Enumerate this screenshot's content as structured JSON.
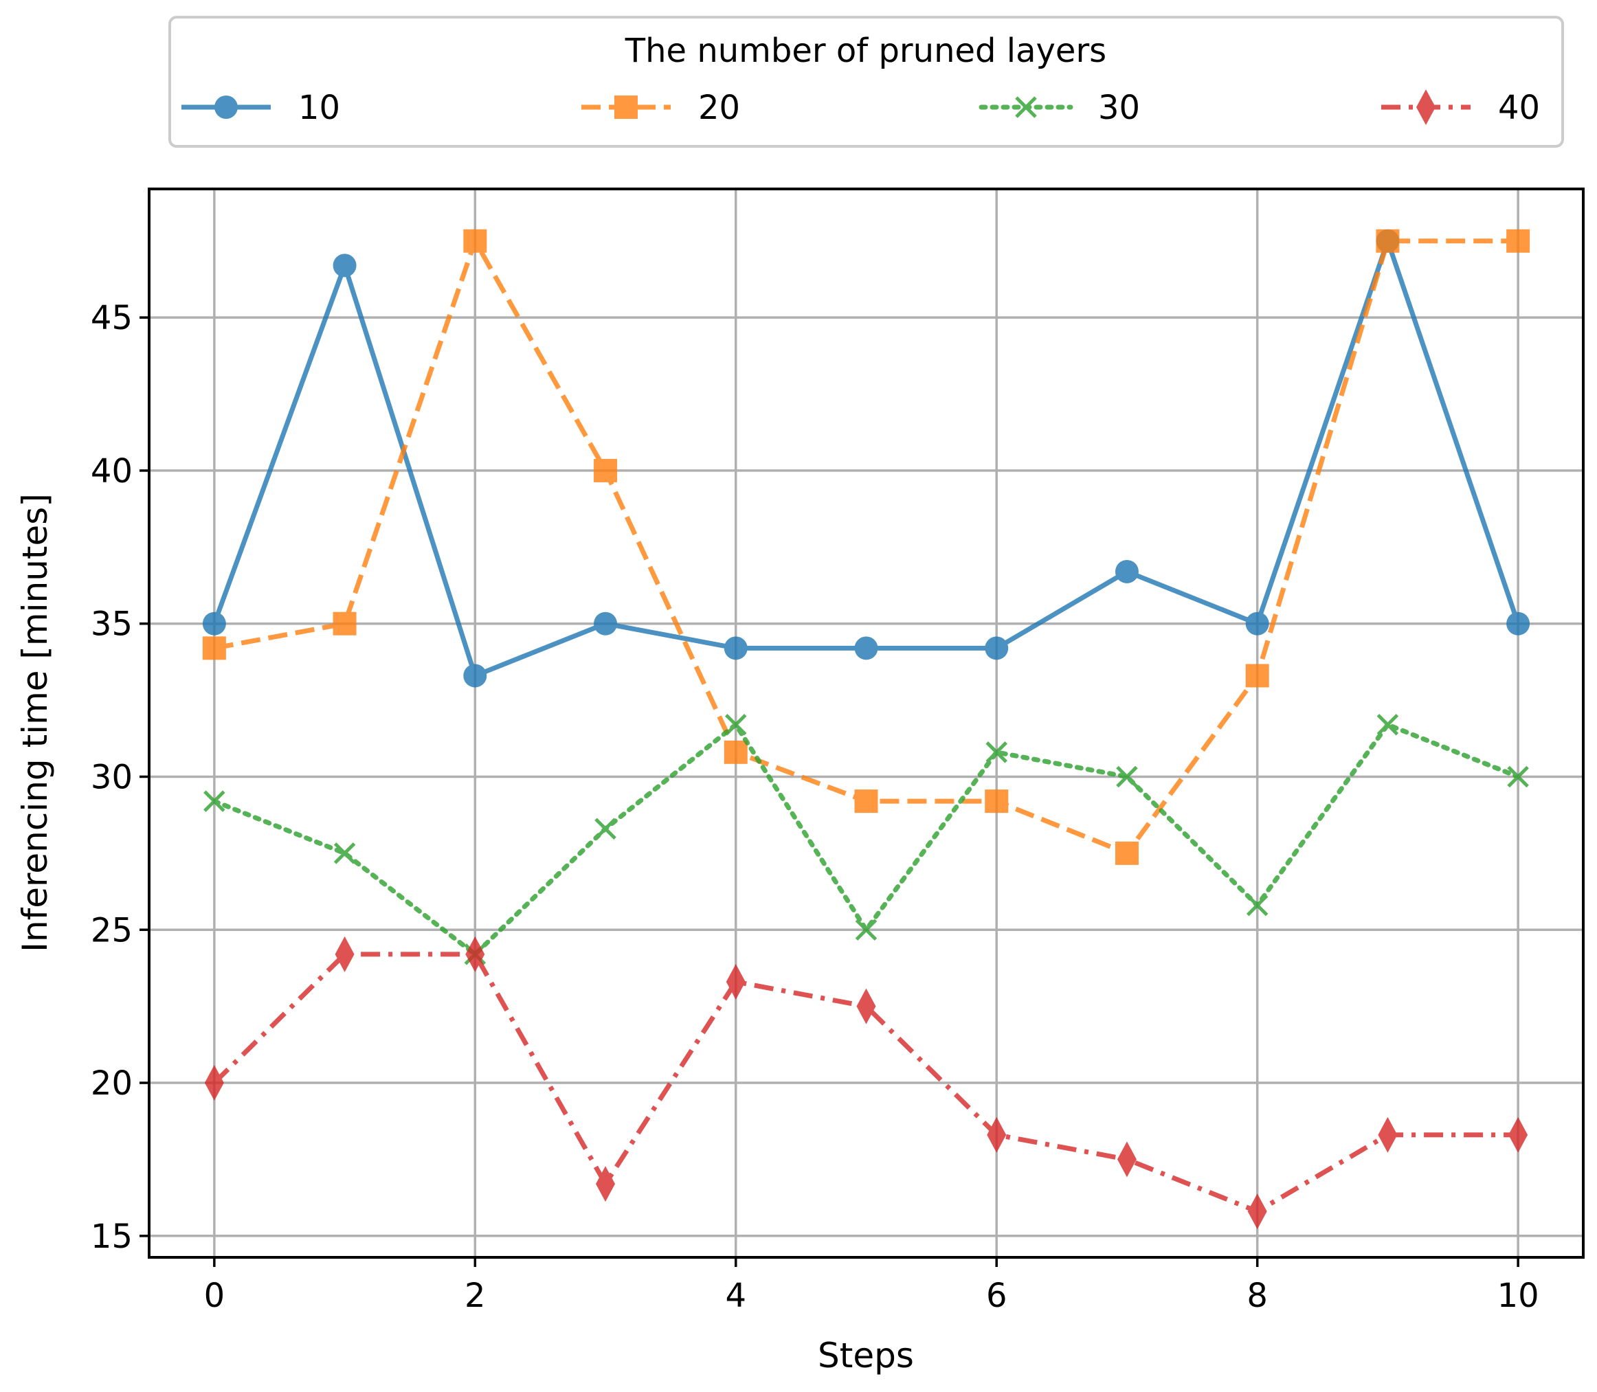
{
  "chart_data": {
    "type": "line",
    "xlabel": "Steps",
    "ylabel": "Inferencing time [minutes]",
    "xlim": [
      -0.5,
      10.5
    ],
    "ylim": [
      14.3,
      49.2
    ],
    "xticks": [
      0,
      2,
      4,
      6,
      8,
      10
    ],
    "yticks": [
      15,
      20,
      25,
      30,
      35,
      40,
      45
    ],
    "grid": true,
    "legend": {
      "title": "The number of pruned layers",
      "placement": "top, outside plot, single row"
    },
    "x": [
      0,
      1,
      2,
      3,
      4,
      5,
      6,
      7,
      8,
      9,
      10
    ],
    "series": [
      {
        "name": "10",
        "color": "#1f77b4",
        "linestyle": "solid",
        "marker": "circle",
        "values": [
          35.0,
          46.7,
          33.3,
          35.0,
          34.2,
          34.2,
          34.2,
          36.7,
          35.0,
          47.5,
          35.0
        ]
      },
      {
        "name": "20",
        "color": "#ff7f0e",
        "linestyle": "dashed",
        "marker": "square",
        "values": [
          34.2,
          35.0,
          47.5,
          40.0,
          30.8,
          29.2,
          29.2,
          27.5,
          33.3,
          47.5,
          47.5
        ]
      },
      {
        "name": "30",
        "color": "#2ca02c",
        "linestyle": "dotted",
        "marker": "x",
        "values": [
          29.2,
          27.5,
          24.2,
          28.3,
          31.7,
          25.0,
          30.8,
          30.0,
          25.8,
          31.7,
          30.0
        ]
      },
      {
        "name": "40",
        "color": "#d62728",
        "linestyle": "dashdot",
        "marker": "thin_diamond",
        "values": [
          20.0,
          24.2,
          24.2,
          16.7,
          23.3,
          22.5,
          18.3,
          17.5,
          15.8,
          18.3,
          18.3
        ]
      }
    ]
  }
}
